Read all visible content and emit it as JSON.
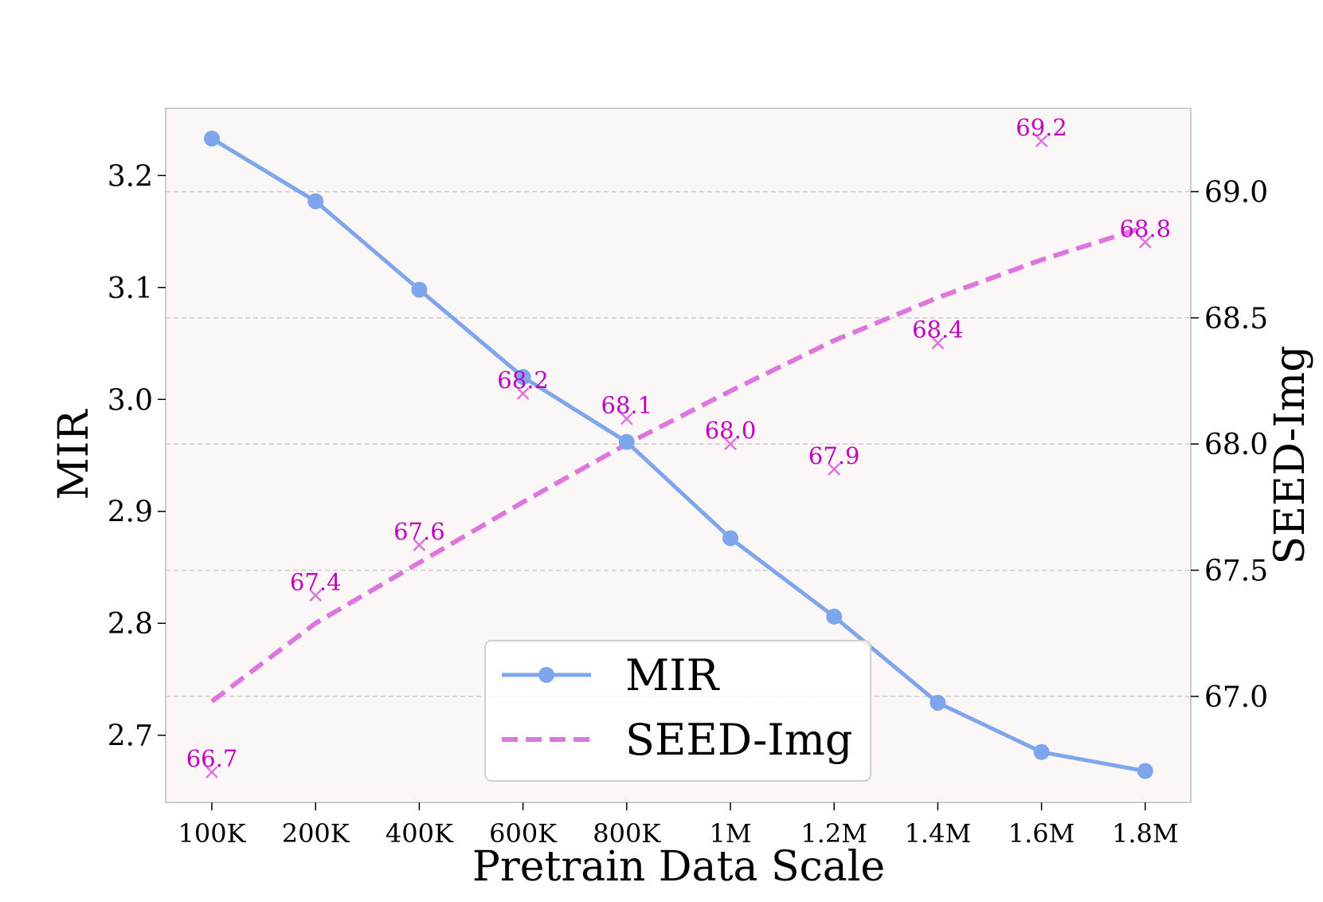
{
  "chart_data": {
    "type": "line",
    "xlabel": "Pretrain Data Scale",
    "ylabel_left": "MIR",
    "ylabel_right": "SEED-Img",
    "categories": [
      "100K",
      "200K",
      "400K",
      "600K",
      "800K",
      "1M",
      "1.2M",
      "1.4M",
      "1.6M",
      "1.8M"
    ],
    "ylim_left": [
      2.64,
      3.26
    ],
    "ylim_right": [
      66.58,
      69.33
    ],
    "yticks_left": [
      2.7,
      2.8,
      2.9,
      3.0,
      3.1,
      3.2
    ],
    "yticks_left_labels": [
      "2.7",
      "2.8",
      "2.9",
      "3.0",
      "3.1",
      "3.2"
    ],
    "yticks_right": [
      67.0,
      67.5,
      68.0,
      68.5,
      69.0
    ],
    "yticks_right_labels": [
      "67.0",
      "67.5",
      "68.0",
      "68.5",
      "69.0"
    ],
    "grid": "horizontal dashed at right-axis ticks",
    "legend_position": "bottom-center",
    "series": [
      {
        "name": "MIR",
        "axis": "left",
        "style": "solid line with circle markers",
        "color": "#7ea6ec",
        "values": [
          3.233,
          3.177,
          3.098,
          3.02,
          2.962,
          2.876,
          2.806,
          2.729,
          2.685,
          2.668
        ]
      },
      {
        "name": "SEED-Img",
        "axis": "right",
        "style": "x markers with value labels",
        "color": "#c000c0",
        "values": [
          66.7,
          67.4,
          67.6,
          68.2,
          68.1,
          68.0,
          67.9,
          68.4,
          69.2,
          68.8
        ],
        "value_labels": [
          "66.7",
          "67.4",
          "67.6",
          "68.2",
          "68.1",
          "68.0",
          "67.9",
          "68.4",
          "69.2",
          "68.8"
        ]
      },
      {
        "name": "SEED-Img",
        "axis": "right",
        "style": "dashed trend line",
        "color": "#dd77dd",
        "values": [
          66.98,
          67.29,
          67.53,
          67.77,
          68.0,
          68.21,
          68.41,
          68.58,
          68.73,
          68.86
        ]
      }
    ],
    "legend": [
      "MIR",
      "SEED-Img"
    ]
  },
  "colors": {
    "plot_background": "#fcf7f7",
    "mir": "#7ea6ec",
    "seed_points": "#c000c0",
    "seed_trend": "#dd77dd",
    "grid": "#cccccc"
  }
}
